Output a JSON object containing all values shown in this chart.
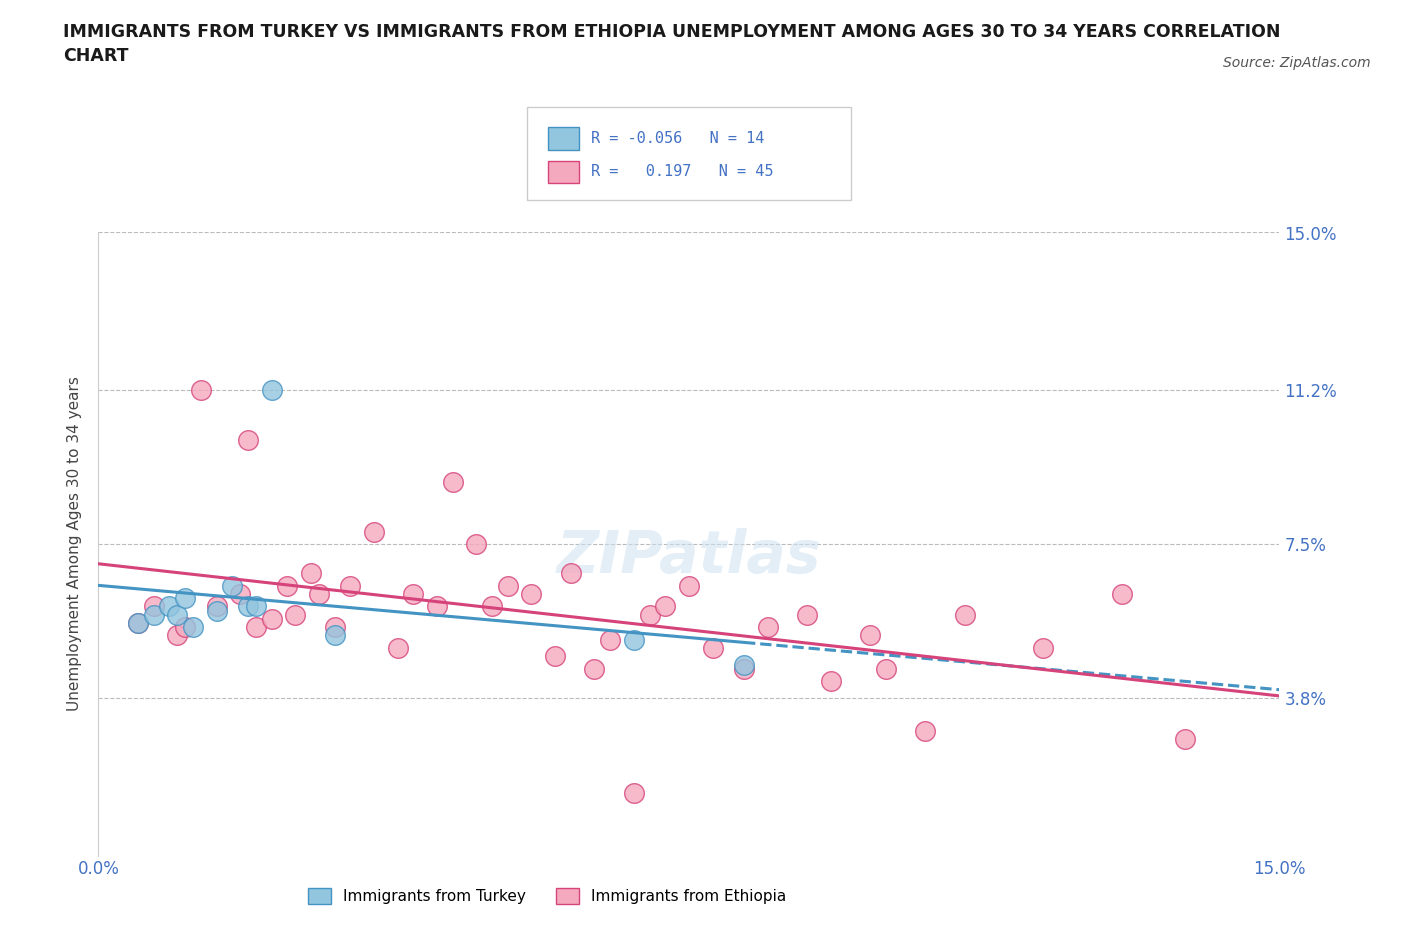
{
  "title": "IMMIGRANTS FROM TURKEY VS IMMIGRANTS FROM ETHIOPIA UNEMPLOYMENT AMONG AGES 30 TO 34 YEARS CORRELATION\nCHART",
  "source": "Source: ZipAtlas.com",
  "ylabel": "Unemployment Among Ages 30 to 34 years",
  "y_tick_labels_right": [
    "3.8%",
    "7.5%",
    "11.2%",
    "15.0%"
  ],
  "y_tick_values": [
    0.038,
    0.075,
    0.112,
    0.15
  ],
  "xlim": [
    0.0,
    0.15
  ],
  "ylim": [
    0.0,
    0.15
  ],
  "legend_label_turkey": "Immigrants from Turkey",
  "legend_label_ethiopia": "Immigrants from Ethiopia",
  "R_turkey": -0.056,
  "N_turkey": 14,
  "R_ethiopia": 0.197,
  "N_ethiopia": 45,
  "color_turkey": "#92c5de",
  "color_ethiopia": "#f4a9be",
  "color_turkey_line": "#4393c3",
  "color_ethiopia_line": "#d6437a",
  "color_axis": "#4472c4",
  "watermark": "ZIPatlas",
  "turkey_x": [
    0.005,
    0.007,
    0.009,
    0.01,
    0.011,
    0.012,
    0.015,
    0.017,
    0.019,
    0.02,
    0.022,
    0.03,
    0.068,
    0.082
  ],
  "turkey_y": [
    0.056,
    0.058,
    0.06,
    0.058,
    0.062,
    0.055,
    0.059,
    0.065,
    0.06,
    0.06,
    0.112,
    0.053,
    0.052,
    0.046
  ],
  "ethiopia_x": [
    0.005,
    0.007,
    0.01,
    0.011,
    0.013,
    0.015,
    0.018,
    0.019,
    0.02,
    0.022,
    0.024,
    0.025,
    0.027,
    0.028,
    0.03,
    0.032,
    0.035,
    0.038,
    0.04,
    0.043,
    0.045,
    0.048,
    0.05,
    0.052,
    0.055,
    0.058,
    0.06,
    0.063,
    0.065,
    0.068,
    0.07,
    0.072,
    0.075,
    0.078,
    0.082,
    0.085,
    0.09,
    0.093,
    0.098,
    0.1,
    0.105,
    0.11,
    0.12,
    0.13,
    0.138
  ],
  "ethiopia_y": [
    0.056,
    0.06,
    0.053,
    0.055,
    0.112,
    0.06,
    0.063,
    0.1,
    0.055,
    0.057,
    0.065,
    0.058,
    0.068,
    0.063,
    0.055,
    0.065,
    0.078,
    0.05,
    0.063,
    0.06,
    0.09,
    0.075,
    0.06,
    0.065,
    0.063,
    0.048,
    0.068,
    0.045,
    0.052,
    0.015,
    0.058,
    0.06,
    0.065,
    0.05,
    0.045,
    0.055,
    0.058,
    0.042,
    0.053,
    0.045,
    0.03,
    0.058,
    0.05,
    0.063,
    0.028
  ]
}
